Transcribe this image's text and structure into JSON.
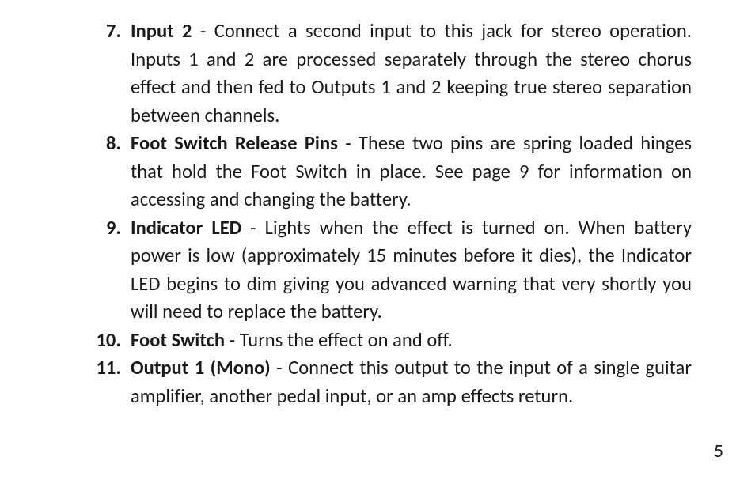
{
  "page_number": "5",
  "items": [
    {
      "num": "7.",
      "title": "Input 2",
      "text": " - Connect a second input to this jack for stereo operation. Inputs 1 and 2 are processed separately through the stereo chorus effect and then fed to Outputs 1 and 2 keeping true stereo separa­tion between channels."
    },
    {
      "num": "8.",
      "title": "Foot Switch Release Pins",
      "text": " - These two pins are spring loaded hinges that hold the Foot Switch in place. See page 9 for informa­tion on accessing and changing the battery."
    },
    {
      "num": "9.",
      "title": "Indicator LED",
      "text": " - Lights when the effect is turned on. When bat­tery power is low (approximately 15 minutes before it dies), the Indicator LED begins to dim giving you advanced warning that very shortly you will need to replace the battery."
    },
    {
      "num": "10.",
      "title": "Foot Switch",
      "text": " - Turns the effect on and off."
    },
    {
      "num": "11.",
      "title": "Output 1 (Mono) ",
      "text": " - Connect this output to the input of a single guitar amplifier, another pedal input, or an amp effects return."
    }
  ]
}
